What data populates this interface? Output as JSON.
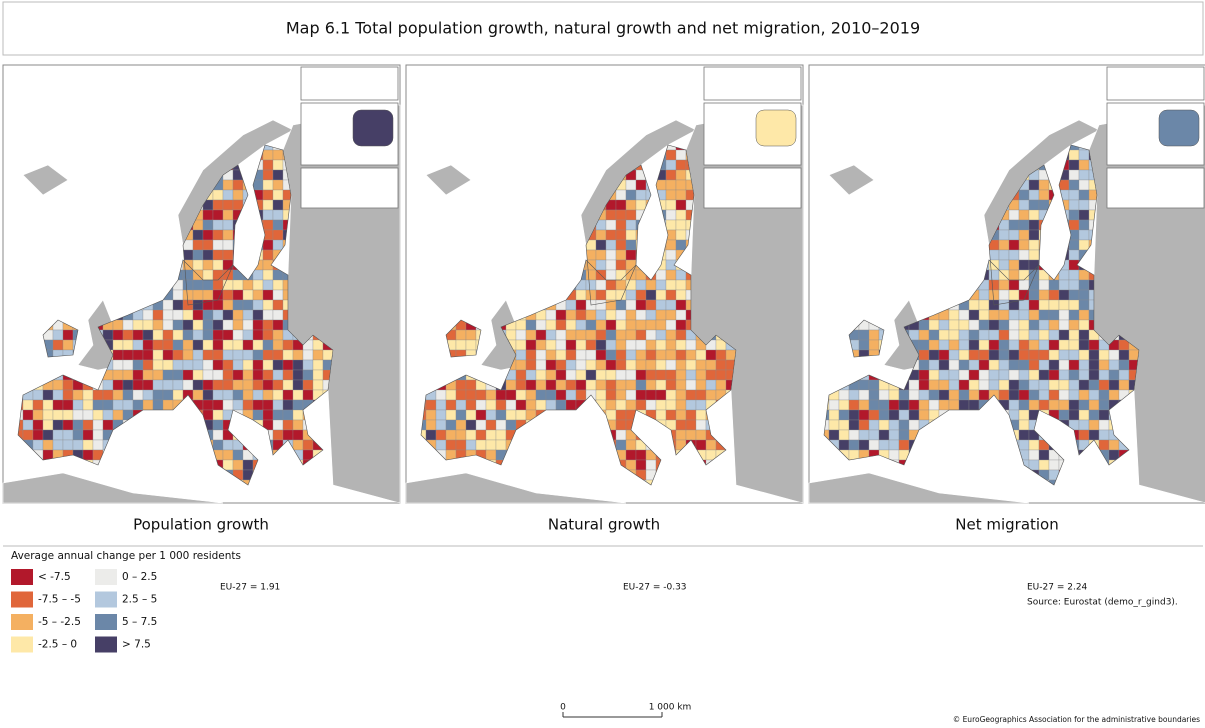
{
  "title": "Map 6.1 Total population growth, natural growth and net migration, 2010–2019",
  "panels": [
    {
      "caption": "Population growth",
      "eu_value": "EU-27 = 1.91"
    },
    {
      "caption": "Natural growth",
      "eu_value": "EU-27 = -0.33"
    },
    {
      "caption": "Net migration",
      "eu_value": "EU-27 = 2.24"
    }
  ],
  "legend": {
    "title": "Average annual change per 1 000 residents",
    "items": [
      {
        "label": "< -7.5",
        "color": "#b2182b"
      },
      {
        "label": "-7.5 – -5",
        "color": "#e0663a"
      },
      {
        "label": "-5 – -2.5",
        "color": "#f4b061"
      },
      {
        "label": "-2.5 – 0",
        "color": "#fee8a8"
      },
      {
        "label": "0 – 2.5",
        "color": "#ececea"
      },
      {
        "label": "2.5 – 5",
        "color": "#b3c8de"
      },
      {
        "label": "5 – 7.5",
        "color": "#6b87a8"
      },
      {
        "label": "> 7.5",
        "color": "#463f66"
      }
    ]
  },
  "source": "Source: Eurostat (demo_r_gind3).",
  "scale_bar": {
    "start": "0",
    "end": "1 000 km"
  },
  "copyright": "© EuroGeographics Association for the administrative boundaries"
}
